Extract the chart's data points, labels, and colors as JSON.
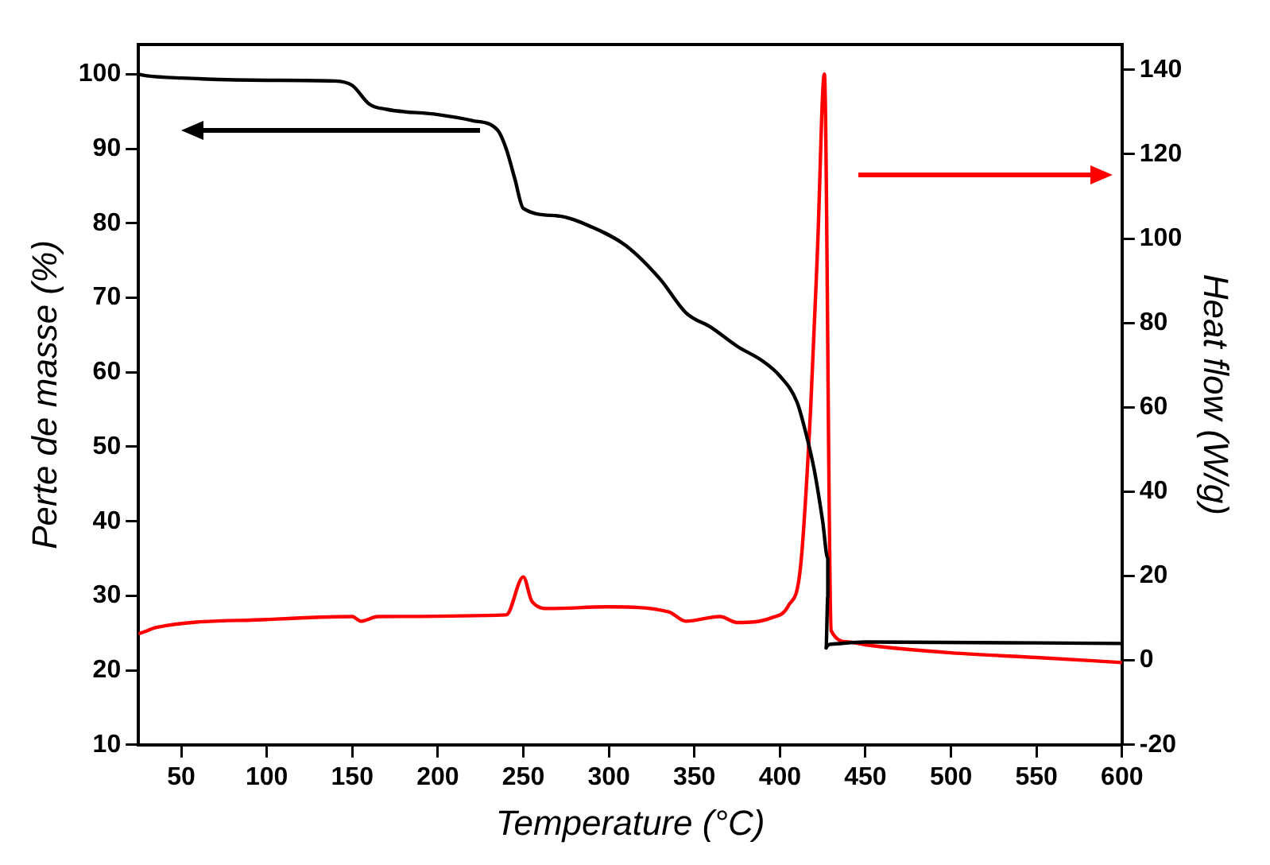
{
  "chart_data": {
    "type": "line",
    "xlabel": "Temperature (°C)",
    "ylabel": "Perte de masse (%)",
    "y2label": "Heat flow (W/g)",
    "xlim": [
      25,
      600
    ],
    "xticks": [
      50,
      100,
      150,
      200,
      250,
      300,
      350,
      400,
      450,
      500,
      550,
      600
    ],
    "ylim": [
      10,
      104
    ],
    "yticks": [
      10,
      20,
      30,
      40,
      50,
      60,
      70,
      80,
      90,
      100
    ],
    "y2lim": [
      -20,
      146
    ],
    "y2ticks": [
      -20,
      0,
      20,
      40,
      60,
      80,
      100,
      120,
      140
    ],
    "grid": false,
    "legend": false,
    "marker": "none",
    "line_style": "solid",
    "series": [
      {
        "color": "#000000",
        "axis": "y",
        "x": [
          25,
          30,
          50,
          100,
          140,
          150,
          160,
          170,
          200,
          220,
          235,
          240,
          245,
          250,
          270,
          290,
          310,
          330,
          345,
          360,
          375,
          390,
          400,
          410,
          415,
          420,
          425,
          428,
          428,
          427,
          430,
          450,
          600
        ],
        "values": [
          100,
          99.8,
          99.5,
          99.2,
          99.1,
          98.5,
          96,
          95.3,
          94.6,
          93.8,
          92.5,
          90,
          86,
          82,
          81,
          79.5,
          77,
          72.5,
          68,
          66,
          63.5,
          61.5,
          59.5,
          56,
          52,
          47,
          40,
          35,
          30,
          23,
          23.5,
          23.8,
          23.6
        ]
      },
      {
        "color": "#ff0000",
        "axis": "y2",
        "x": [
          25,
          30,
          35,
          100,
          150,
          155,
          165,
          240,
          250,
          255,
          265,
          300,
          335,
          345,
          365,
          375,
          395,
          405,
          412,
          418,
          422,
          426,
          430,
          440,
          450,
          500,
          550,
          600
        ],
        "values": [
          6.3,
          7,
          7.8,
          9.7,
          10.4,
          9.3,
          10.4,
          10.8,
          19.8,
          14,
          12.3,
          12.7,
          11.5,
          9.3,
          10.4,
          9,
          10.1,
          13,
          22,
          60,
          97.6,
          139,
          7,
          4.4,
          3.7,
          1.8,
          0.7,
          -0.5
        ]
      }
    ]
  }
}
